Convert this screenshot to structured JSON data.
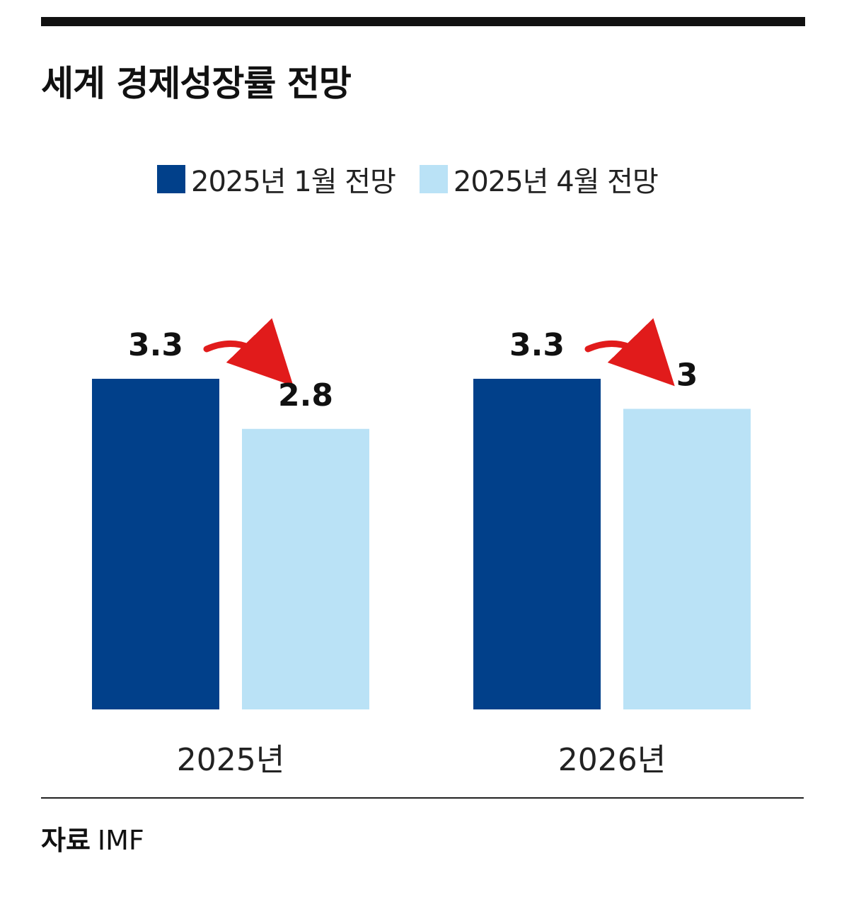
{
  "header": {
    "title": "세계 경제성장률 전망"
  },
  "source": {
    "label": "자료",
    "value": "IMF"
  },
  "colors": {
    "series_jan": "#01408a",
    "series_apr": "#bae2f6",
    "arrow": "#e11b1b"
  },
  "chart_data": {
    "type": "bar",
    "title": "세계 경제성장률 전망",
    "categories": [
      "2025년",
      "2026년"
    ],
    "series": [
      {
        "name": "2025년 1월 전망",
        "values": [
          3.3,
          3.3
        ],
        "color": "#01408a"
      },
      {
        "name": "2025년 4월 전망",
        "values": [
          2.8,
          3
        ],
        "color": "#bae2f6"
      }
    ],
    "value_labels": [
      [
        "3.3",
        "3.3"
      ],
      [
        "2.8",
        "3"
      ]
    ],
    "xlabel": "",
    "ylabel": "",
    "ylim": [
      0,
      3.3
    ],
    "grid": false,
    "legend": "top-center",
    "annotations": "red curved arrow from January forecast to April forecast in each category"
  }
}
